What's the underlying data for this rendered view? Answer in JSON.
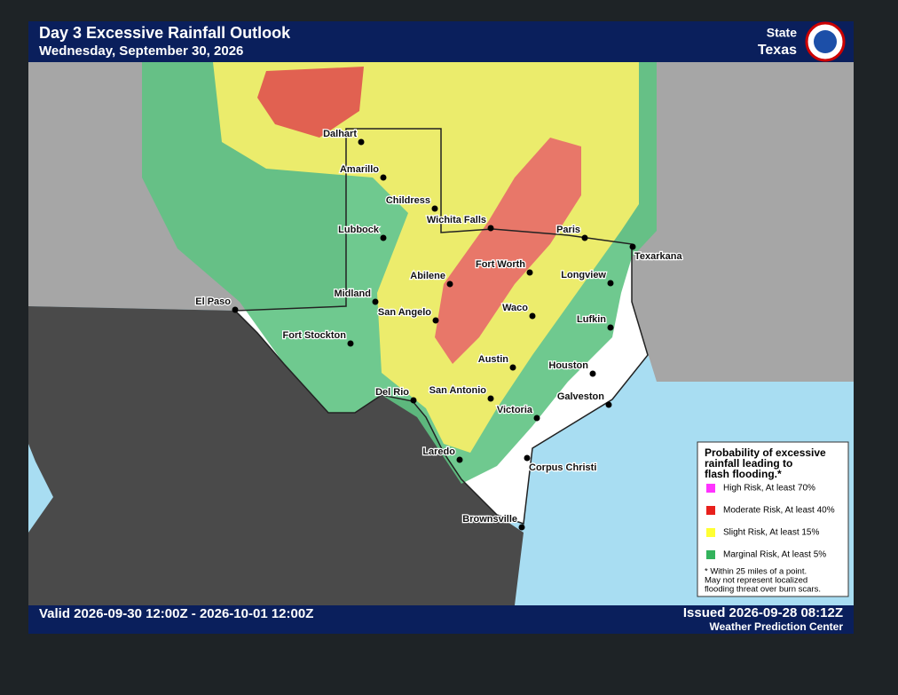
{
  "header": {
    "title": "Day 3 Excessive Rainfall Outlook",
    "subtitle": "Wednesday, September 30, 2026",
    "state_label": "State",
    "state": "Texas"
  },
  "cities": [
    {
      "name": "Dalhart"
    },
    {
      "name": "Amarillo"
    },
    {
      "name": "Childress"
    },
    {
      "name": "Wichita Falls"
    },
    {
      "name": "Lubbock"
    },
    {
      "name": "Paris"
    },
    {
      "name": "Texarkana"
    },
    {
      "name": "Fort Worth"
    },
    {
      "name": "Abilene"
    },
    {
      "name": "Longview"
    },
    {
      "name": "Midland"
    },
    {
      "name": "El Paso"
    },
    {
      "name": "San Angelo"
    },
    {
      "name": "Waco"
    },
    {
      "name": "Lufkin"
    },
    {
      "name": "Fort Stockton"
    },
    {
      "name": "Austin"
    },
    {
      "name": "Houston"
    },
    {
      "name": "Del Rio"
    },
    {
      "name": "San Antonio"
    },
    {
      "name": "Galveston"
    },
    {
      "name": "Victoria"
    },
    {
      "name": "Laredo"
    },
    {
      "name": "Corpus Christi"
    },
    {
      "name": "Brownsville"
    }
  ],
  "legend": {
    "title": [
      "Probability of excessive",
      "rainfall leading to",
      "flash flooding.*"
    ],
    "items": [
      {
        "name": "High Risk, At least 70%",
        "color": "#ff33ff"
      },
      {
        "name": "Moderate Risk, At least 40%",
        "color": "#e8201c"
      },
      {
        "name": "Slight Risk, At least 15%",
        "color": "#ffff33"
      },
      {
        "name": "Marginal Risk, At least 5%",
        "color": "#33b35c"
      }
    ],
    "note": [
      "* Within 25 miles of a point.",
      "May not represent localized",
      "flooding threat over burn scars."
    ]
  },
  "footer": {
    "valid": "Valid 2026-09-30 12:00Z - 2026-10-01 12:00Z",
    "issued": "Issued 2026-09-28 08:12Z",
    "source": "Weather Prediction Center"
  }
}
